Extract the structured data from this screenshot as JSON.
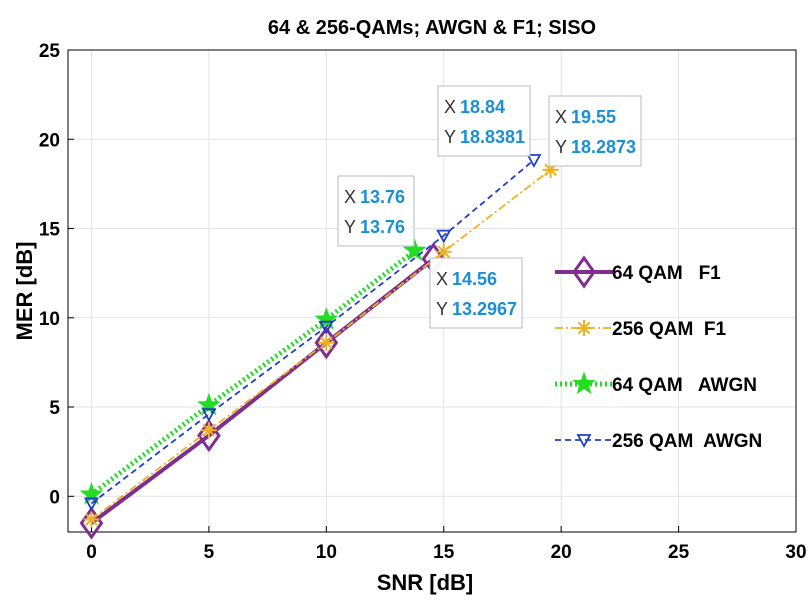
{
  "chart_data": {
    "type": "line",
    "title": "64 & 256-QAMs; AWGN & F1; SISO",
    "xlabel": "SNR [dB]",
    "ylabel": "MER [dB]",
    "xlim": [
      -1,
      30
    ],
    "ylim": [
      -2,
      25
    ],
    "xticks": [
      "0",
      "5",
      "10",
      "15",
      "20",
      "25",
      "30"
    ],
    "yticks": [
      "0",
      "5",
      "10",
      "15",
      "20",
      "25"
    ],
    "grid": true,
    "legend_position": "right",
    "series": [
      {
        "name": "64 QAM   F1",
        "color": "#7e2f8e",
        "marker": "diamond",
        "dash": "solid",
        "x": [
          0,
          5,
          10,
          14.56
        ],
        "y": [
          -1.5,
          3.4,
          8.6,
          13.2967
        ]
      },
      {
        "name": "256 QAM  F1",
        "color": "#edb120",
        "marker": "asterisk",
        "dash": "dashdot",
        "x": [
          0,
          5,
          10,
          15,
          19.55
        ],
        "y": [
          -1.3,
          3.7,
          8.6,
          13.7,
          18.2873
        ]
      },
      {
        "name": "64 QAM   AWGN",
        "color": "#22dd22",
        "marker": "star",
        "dash": "dotted",
        "x": [
          0,
          5,
          10,
          13.76
        ],
        "y": [
          0.1,
          5.1,
          9.9,
          13.76
        ]
      },
      {
        "name": "256 QAM  AWGN",
        "color": "#1f3fc7",
        "marker": "triangle-down",
        "dash": "dashed",
        "x": [
          0,
          5,
          10,
          15,
          18.84
        ],
        "y": [
          -0.4,
          4.6,
          9.5,
          14.6,
          18.8381
        ]
      }
    ],
    "datatips": [
      {
        "x_key": "X",
        "y_key": "Y",
        "x": "18.84",
        "y": "18.8381"
      },
      {
        "x_key": "X",
        "y_key": "Y",
        "x": "19.55",
        "y": "18.2873"
      },
      {
        "x_key": "X",
        "y_key": "Y",
        "x": "13.76",
        "y": "13.76"
      },
      {
        "x_key": "X",
        "y_key": "Y",
        "x": "14.56",
        "y": "13.2967"
      }
    ]
  }
}
